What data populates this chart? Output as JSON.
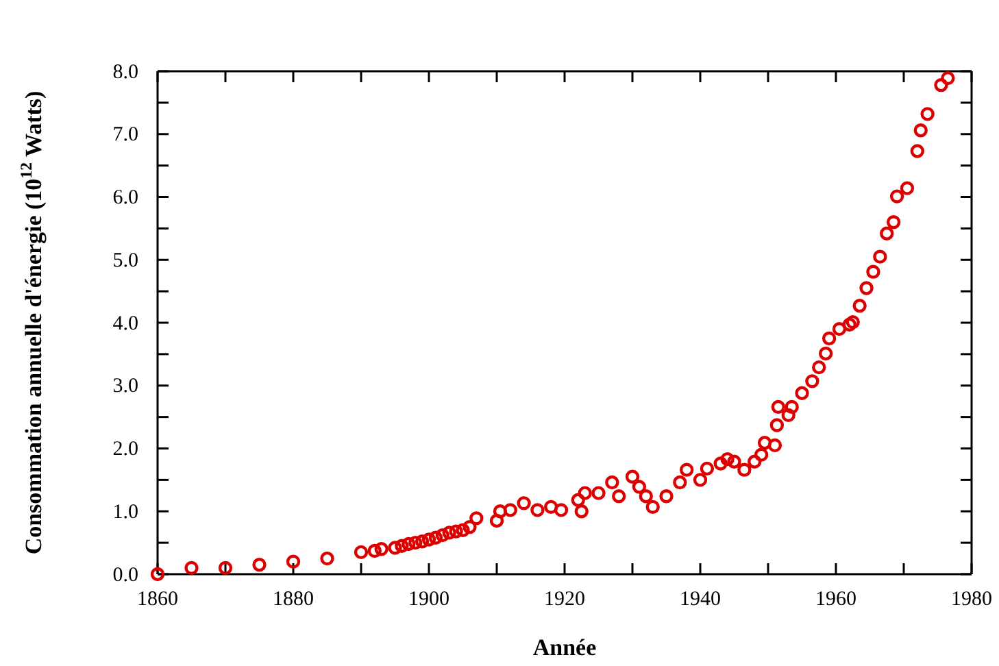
{
  "chart_data": {
    "type": "scatter",
    "xlabel": "Année",
    "ylabel": "Consommation annuelle d'énergie (10$^{12}$ Watts)",
    "xlim": [
      1860,
      1980
    ],
    "xticks": [
      1860,
      {
        "value": 1870,
        "label": null
      },
      1880,
      {
        "value": 1890,
        "label": null
      },
      1900,
      {
        "value": 1910,
        "label": null
      },
      1920,
      {
        "value": 1930,
        "label": null
      },
      1940,
      {
        "value": 1950,
        "label": null
      },
      1960,
      {
        "value": 1970,
        "label": null
      },
      1980
    ],
    "ylim": [
      0,
      8
    ],
    "yticks": [
      {
        "value": 0,
        "label": "0.0"
      },
      {
        "value": 0.5,
        "label": null
      },
      {
        "value": 1,
        "label": "1.0"
      },
      {
        "value": 1.5,
        "label": null
      },
      {
        "value": 2,
        "label": "2.0"
      },
      {
        "value": 2.5,
        "label": null
      },
      {
        "value": 3,
        "label": "3.0"
      },
      {
        "value": 3.5,
        "label": null
      },
      {
        "value": 4,
        "label": "4.0"
      },
      {
        "value": 4.5,
        "label": null
      },
      {
        "value": 5,
        "label": "5.0"
      },
      {
        "value": 5.5,
        "label": null
      },
      {
        "value": 6,
        "label": "6.0"
      },
      {
        "value": 6.5,
        "label": null
      },
      {
        "value": 7,
        "label": "7.0"
      },
      {
        "value": 7.5,
        "label": null
      },
      {
        "value": 8,
        "label": "8.0"
      }
    ],
    "grid": false,
    "legend": false,
    "marker": "circle",
    "x": [
      1860,
      1865,
      1870,
      1875,
      1880,
      1885,
      1890,
      1892,
      1893,
      1895,
      1896,
      1897,
      1898,
      1899,
      1900,
      1901,
      1902,
      1903,
      1904,
      1905,
      1906,
      1907,
      1910,
      1910.5,
      1912,
      1914,
      1916,
      1918,
      1919.5,
      1922,
      1922.5,
      1923,
      1925,
      1927,
      1928,
      1930,
      1931,
      1932,
      1933,
      1935,
      1937,
      1938,
      1940,
      1941,
      1943,
      1944,
      1945,
      1946.5,
      1948,
      1949,
      1949.5,
      1951,
      1951.3,
      1951.5,
      1953,
      1953.5,
      1955,
      1956.5,
      1957.5,
      1958.5,
      1959,
      1960.5,
      1962,
      1962.5,
      1963.5,
      1964.5,
      1965.5,
      1966.5,
      1967.5,
      1968.5,
      1969,
      1970.5,
      1972,
      1972.5,
      1973.5,
      1975.5,
      1976.5
    ],
    "series": [
      {
        "color": "#dd0000",
        "values": [
          0.0,
          0.1,
          0.1,
          0.15,
          0.2,
          0.25,
          0.35,
          0.37,
          0.4,
          0.42,
          0.45,
          0.48,
          0.5,
          0.52,
          0.55,
          0.58,
          0.62,
          0.66,
          0.68,
          0.7,
          0.75,
          0.89,
          0.85,
          1.0,
          1.02,
          1.13,
          1.02,
          1.07,
          1.02,
          1.18,
          1.0,
          1.29,
          1.29,
          1.46,
          1.24,
          1.55,
          1.39,
          1.24,
          1.07,
          1.24,
          1.46,
          1.66,
          1.5,
          1.68,
          1.76,
          1.83,
          1.79,
          1.66,
          1.79,
          1.9,
          2.09,
          2.05,
          2.37,
          2.66,
          2.53,
          2.66,
          2.88,
          3.07,
          3.29,
          3.51,
          3.75,
          3.9,
          3.97,
          4.01,
          4.27,
          4.55,
          4.81,
          5.05,
          5.42,
          5.6,
          6.01,
          6.14,
          6.73,
          7.06,
          7.32,
          7.78,
          7.89
        ]
      }
    ]
  }
}
